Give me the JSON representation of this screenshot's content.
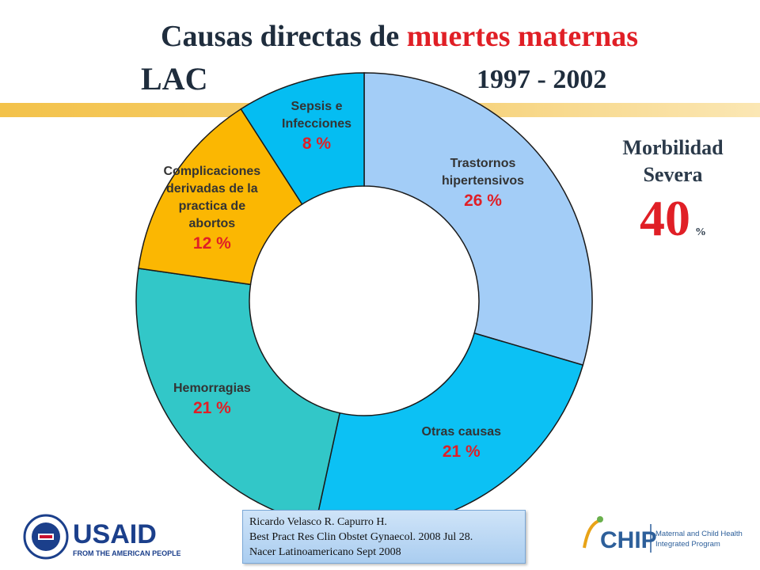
{
  "header": {
    "title_prefix": "Causas directas de ",
    "title_highlight": "muertes maternas",
    "region": "LAC",
    "years": "1997 - 2002"
  },
  "chart_data": {
    "type": "pie",
    "style": "donut",
    "slices": [
      {
        "label_lines": [
          "Trastornos",
          "hipertensivos"
        ],
        "value": 26,
        "pct_label": "26 %",
        "color": "#a3cdf7"
      },
      {
        "label_lines": [
          "Otras causas"
        ],
        "value": 21,
        "pct_label": "21  %",
        "color": "#0cc1f4"
      },
      {
        "label_lines": [
          "Hemorragias"
        ],
        "value": 21,
        "pct_label": "21 %",
        "color": "#32c7c8"
      },
      {
        "label_lines": [
          "Complicaciones",
          "derivadas de la",
          "practica de",
          "abortos"
        ],
        "value": 12,
        "pct_label": "12 %",
        "color": "#fbb702"
      },
      {
        "label_lines": [
          "Sepsis e",
          "Infecciones"
        ],
        "value": 8,
        "pct_label": "8 %",
        "color": "#05bdf2"
      }
    ]
  },
  "morbidity": {
    "line1": "Morbilidad",
    "line2": "Severa",
    "value": "40",
    "unit": "%"
  },
  "citation": {
    "line1": "Ricardo Velasco R. Capurro H.",
    "line2": "Best Pract Res Clin Obstet Gynaecol. 2008 Jul 28.",
    "line3": " Nacer Latinoamericano  Sept 2008"
  },
  "logos": {
    "usaid_name": "USAID",
    "usaid_tagline": "FROM THE AMERICAN PEOPLE",
    "chip_name": "CHIP",
    "chip_tagline_1": "Maternal and Child Health",
    "chip_tagline_2": "Integrated Program"
  },
  "colors": {
    "accent_red": "#e01f26",
    "accent_bar": "#f3c24a"
  }
}
